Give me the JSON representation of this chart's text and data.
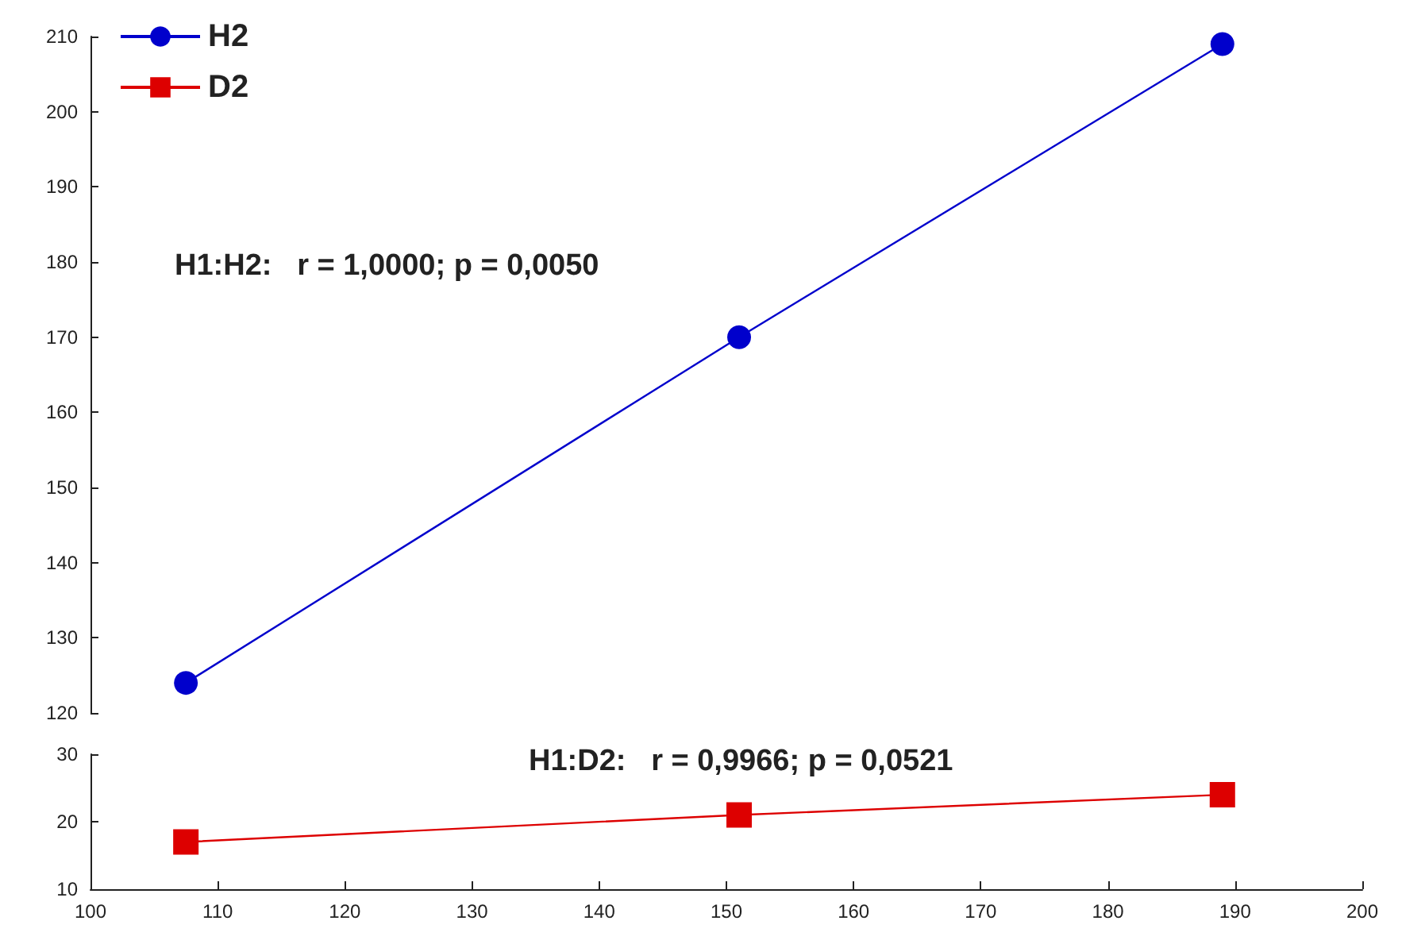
{
  "chart_data": [
    {
      "type": "line",
      "x": [
        107.5,
        151,
        189
      ],
      "series": [
        {
          "name": "H2",
          "color": "#0000cc",
          "values": [
            124,
            170,
            209
          ]
        }
      ],
      "xlim": [
        100,
        200
      ],
      "xticks": [
        100,
        110,
        120,
        130,
        140,
        150,
        160,
        170,
        180,
        190,
        200
      ],
      "ylim": [
        120,
        210
      ],
      "yticks": [
        120,
        130,
        140,
        150,
        160,
        170,
        180,
        190,
        200,
        210
      ],
      "tick_labels": "y",
      "marker": "circle",
      "legend": "top left",
      "grid": false,
      "annotations": [
        "H1:H2:   r = 1,0000; p = 0,0050"
      ]
    },
    {
      "type": "line",
      "x": [
        107.5,
        151,
        189
      ],
      "series": [
        {
          "name": "D2",
          "color": "#dd0000",
          "values": [
            17,
            21,
            24
          ]
        }
      ],
      "xlim": [
        100,
        200
      ],
      "xticks": [
        100,
        110,
        120,
        130,
        140,
        150,
        160,
        170,
        180,
        190,
        200
      ],
      "ylim": [
        10,
        30
      ],
      "yticks": [
        10,
        20,
        30
      ],
      "marker": "square",
      "legend": "top left",
      "grid": false,
      "annotations": [
        "H1:D2:   r = 0,9966; p = 0,0521"
      ]
    }
  ]
}
